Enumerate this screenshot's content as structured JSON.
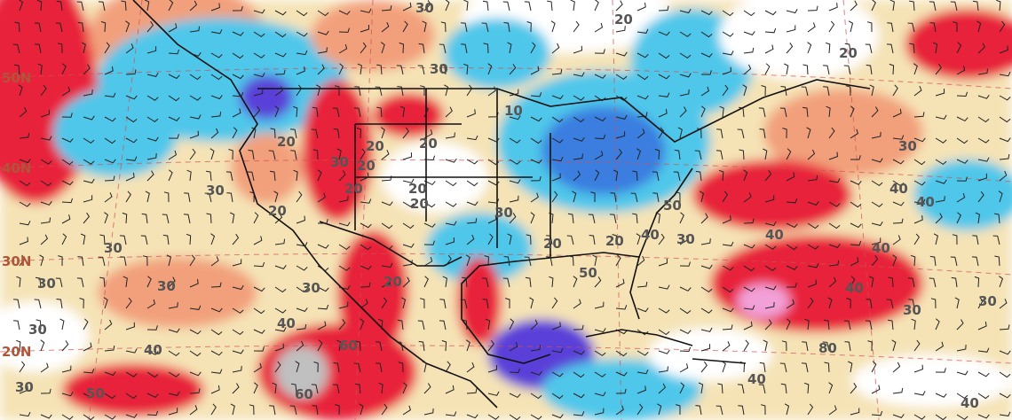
{
  "latitude_labels": [
    "50N",
    "40N",
    "30N",
    "20N"
  ],
  "contour_labels": [
    "30",
    "20",
    "30",
    "20",
    "10",
    "20",
    "20",
    "20",
    "30",
    "20",
    "20",
    "20",
    "20",
    "20",
    "30",
    "20",
    "20",
    "30",
    "40",
    "40",
    "50",
    "30",
    "40",
    "40",
    "40",
    "30",
    "30",
    "30",
    "30",
    "20",
    "50",
    "40",
    "30",
    "30",
    "40",
    "60",
    "40",
    "30",
    "30",
    "60",
    "50",
    "80",
    "40",
    "40",
    "30"
  ]
}
